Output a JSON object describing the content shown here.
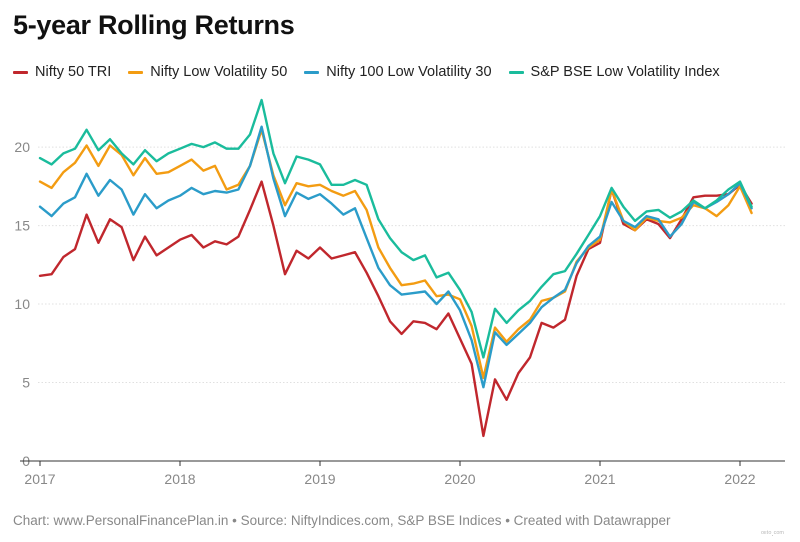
{
  "title": "5-year Rolling Returns",
  "source": "Chart: www.PersonalFinancePlan.in • Source: NiftyIndices.com, S&P BSE Indices • Created with Datawrapper",
  "watermark": "ᵒᶦᶦᵗᵒ.ᶜᵒᵐ",
  "chart_data": {
    "type": "line",
    "title": "5-year Rolling Returns",
    "xlabel": "",
    "ylabel": "",
    "xlim": [
      2017,
      2022.25
    ],
    "ylim": [
      0,
      23
    ],
    "yticks": [
      0,
      5,
      10,
      15,
      20
    ],
    "xticks": [
      2017,
      2018,
      2019,
      2020,
      2021,
      2022
    ],
    "grid": true,
    "legend_position": "top",
    "x": [
      2017.0,
      2017.083,
      2017.167,
      2017.25,
      2017.333,
      2017.417,
      2017.5,
      2017.583,
      2017.667,
      2017.75,
      2017.833,
      2017.917,
      2018.0,
      2018.083,
      2018.167,
      2018.25,
      2018.333,
      2018.417,
      2018.5,
      2018.583,
      2018.667,
      2018.75,
      2018.833,
      2018.917,
      2019.0,
      2019.083,
      2019.167,
      2019.25,
      2019.333,
      2019.417,
      2019.5,
      2019.583,
      2019.667,
      2019.75,
      2019.833,
      2019.917,
      2020.0,
      2020.083,
      2020.167,
      2020.25,
      2020.333,
      2020.417,
      2020.5,
      2020.583,
      2020.667,
      2020.75,
      2020.833,
      2020.917,
      2021.0,
      2021.083,
      2021.167,
      2021.25,
      2021.333,
      2021.417,
      2021.5,
      2021.583,
      2021.667,
      2021.75,
      2021.833,
      2021.917,
      2022.0,
      2022.083
    ],
    "series": [
      {
        "name": "Nifty 50 TRI",
        "color": "#c0272d",
        "values": [
          11.8,
          11.9,
          13.0,
          13.5,
          15.7,
          13.9,
          15.4,
          14.9,
          12.8,
          14.3,
          13.1,
          13.6,
          14.1,
          14.4,
          13.6,
          14.0,
          13.8,
          14.3,
          16.0,
          17.8,
          15.0,
          11.9,
          13.4,
          12.9,
          13.6,
          12.9,
          13.1,
          13.3,
          12.0,
          10.5,
          8.9,
          8.1,
          8.9,
          8.8,
          8.4,
          9.4,
          7.8,
          6.2,
          1.6,
          5.2,
          3.9,
          5.6,
          6.6,
          8.8,
          8.5,
          9.0,
          11.8,
          13.5,
          13.9,
          17.3,
          15.1,
          14.7,
          15.4,
          15.1,
          14.2,
          15.4,
          16.8,
          16.9,
          16.9,
          17.0,
          17.6,
          16.4
        ]
      },
      {
        "name": "Nifty Low Volatility 50",
        "color": "#f39c12",
        "values": [
          17.8,
          17.4,
          18.4,
          19.0,
          20.1,
          18.8,
          20.1,
          19.5,
          18.2,
          19.3,
          18.3,
          18.4,
          18.8,
          19.2,
          18.5,
          18.8,
          17.3,
          17.6,
          18.8,
          21.1,
          18.2,
          16.3,
          17.7,
          17.5,
          17.6,
          17.2,
          16.9,
          17.2,
          16.0,
          13.6,
          12.3,
          11.2,
          11.3,
          11.5,
          10.5,
          10.6,
          10.3,
          8.6,
          5.3,
          8.5,
          7.6,
          8.4,
          9.0,
          10.2,
          10.4,
          10.8,
          12.7,
          13.6,
          14.1,
          17.3,
          15.3,
          14.7,
          15.5,
          15.3,
          15.2,
          15.5,
          16.3,
          16.1,
          15.6,
          16.3,
          17.5,
          15.8
        ]
      },
      {
        "name": "Nifty 100 Low Volatility 30",
        "color": "#2b9cc9",
        "values": [
          16.2,
          15.6,
          16.4,
          16.8,
          18.3,
          16.9,
          17.9,
          17.3,
          15.7,
          17.0,
          16.1,
          16.6,
          16.9,
          17.4,
          17.0,
          17.2,
          17.1,
          17.3,
          18.8,
          21.3,
          18.0,
          15.6,
          17.1,
          16.7,
          17.0,
          16.4,
          15.7,
          16.1,
          14.2,
          12.3,
          11.2,
          10.6,
          10.7,
          10.8,
          10.0,
          10.8,
          9.6,
          7.7,
          4.7,
          8.2,
          7.4,
          8.1,
          8.8,
          9.8,
          10.4,
          10.9,
          12.6,
          13.7,
          14.3,
          16.5,
          15.3,
          14.9,
          15.6,
          15.4,
          14.3,
          15.1,
          16.5,
          16.1,
          16.5,
          17.0,
          17.7,
          16.1
        ]
      },
      {
        "name": "S&P BSE Low Volatility Index",
        "color": "#1abc9c",
        "values": [
          19.3,
          18.9,
          19.6,
          19.9,
          21.1,
          19.8,
          20.5,
          19.6,
          18.9,
          19.8,
          19.1,
          19.6,
          19.9,
          20.2,
          20.0,
          20.3,
          19.9,
          19.9,
          20.8,
          23.0,
          19.6,
          17.7,
          19.4,
          19.2,
          18.9,
          17.6,
          17.6,
          17.9,
          17.6,
          15.4,
          14.2,
          13.3,
          12.8,
          13.1,
          11.7,
          12.0,
          10.9,
          9.5,
          6.6,
          9.7,
          8.8,
          9.6,
          10.2,
          11.1,
          11.9,
          12.1,
          13.2,
          14.4,
          15.6,
          17.4,
          16.2,
          15.3,
          15.9,
          16.0,
          15.5,
          15.9,
          16.6,
          16.1,
          16.6,
          17.3,
          17.8,
          16.2
        ]
      }
    ]
  }
}
